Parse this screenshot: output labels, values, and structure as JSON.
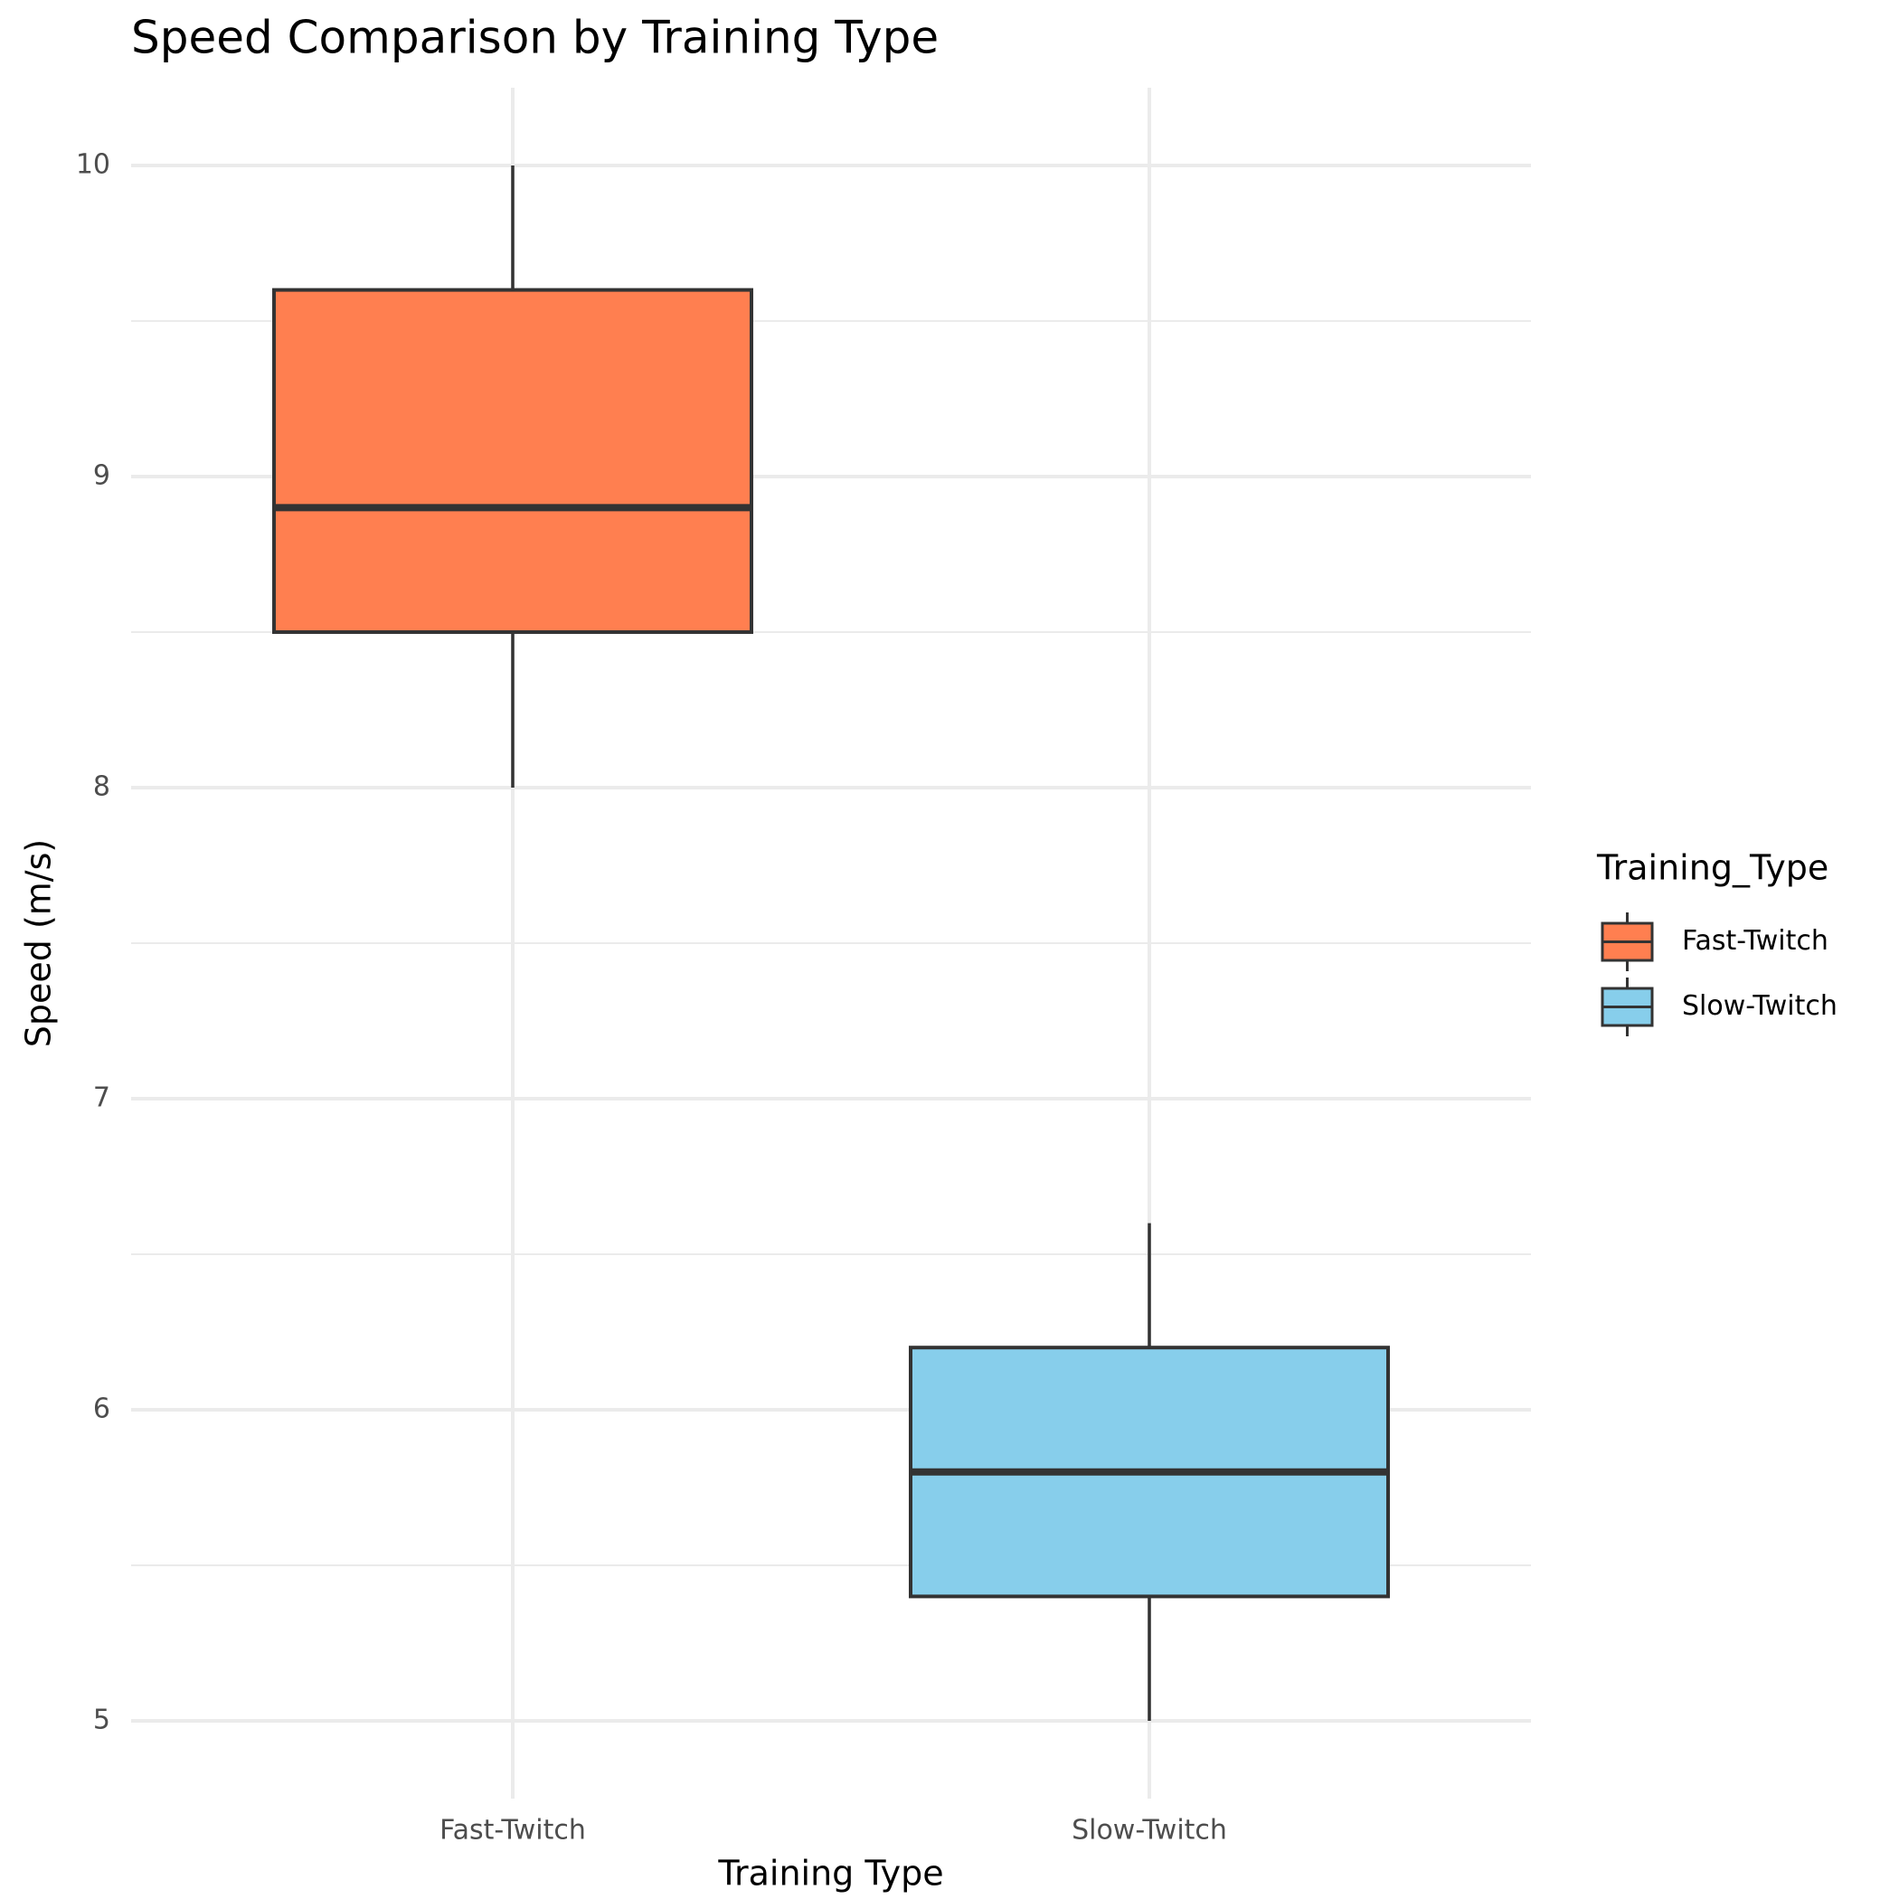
{
  "chart_data": {
    "type": "box",
    "title": "Speed Comparison by Training Type",
    "x_label": "Training Type",
    "y_label": "Speed (m/s)",
    "categories": [
      "Fast-Twitch",
      "Slow-Twitch"
    ],
    "series": [
      {
        "name": "Fast-Twitch",
        "color": "#FF7F50",
        "min": 8,
        "q1": 8.5,
        "median": 8.9,
        "q3": 9.6,
        "max": 10
      },
      {
        "name": "Slow-Twitch",
        "color": "#87CEEB",
        "min": 5,
        "q1": 5.4,
        "median": 5.8,
        "q3": 6.2,
        "max": 6.6
      }
    ],
    "ylim": [
      4.75,
      10.25
    ],
    "yticks": [
      5,
      6,
      7,
      8,
      9,
      10
    ],
    "grid": true,
    "minor_grid": true,
    "legend_title": "Training_Type",
    "legend_position": "right"
  }
}
